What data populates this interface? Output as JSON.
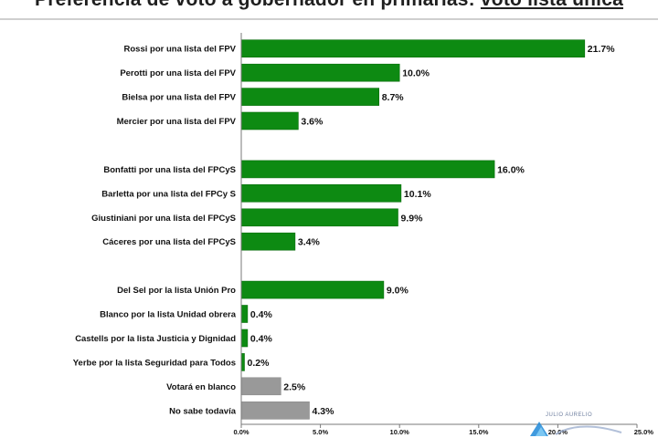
{
  "title_prefix": "Preferencia de voto a gobernador en primarias: ",
  "title_highlight": "voto lista unica",
  "logo_text": "JULIO AURELIO",
  "colors": {
    "candidate": "#0d8a12",
    "other": "#999999",
    "other_border": "#8a8a8a",
    "axis": "#7a7a7a"
  },
  "chart_data": {
    "type": "bar",
    "orientation": "horizontal",
    "categories": [
      "Rossi por una lista del FPV",
      "Perotti por una lista del FPV",
      "Bielsa por una lista del FPV",
      "Mercier por una lista del FPV",
      "",
      "Bonfatti por una lista del FPCyS",
      "Barletta por una lista del FPCy S",
      "Giustiniani por una lista del FPCyS",
      "Cáceres por una lista del FPCyS",
      "",
      "Del Sel por la lista Unión Pro",
      "Blanco por la lista Unidad obrera",
      "Castells por la lista Justicia y Dignidad",
      "Yerbe por la lista Seguridad para Todos",
      "Votará en blanco",
      "No sabe todavía"
    ],
    "values": [
      21.7,
      10.0,
      8.7,
      3.6,
      null,
      16.0,
      10.1,
      9.9,
      3.4,
      null,
      9.0,
      0.4,
      0.4,
      0.2,
      2.5,
      4.3
    ],
    "value_labels": [
      "21.7%",
      "10.0%",
      "8.7%",
      "3.6%",
      "",
      "16.0%",
      "10.1%",
      "9.9%",
      "3.4%",
      "",
      "9.0%",
      "0.4%",
      "0.4%",
      "0.2%",
      "2.5%",
      "4.3%"
    ],
    "bar_color_groups": [
      "candidate",
      "candidate",
      "candidate",
      "candidate",
      "",
      "candidate",
      "candidate",
      "candidate",
      "candidate",
      "",
      "candidate",
      "candidate",
      "candidate",
      "candidate",
      "other",
      "other"
    ],
    "xlim": [
      0,
      25
    ],
    "xticks": [
      0,
      5,
      10,
      15,
      20,
      25
    ],
    "xtick_labels": [
      "0.0%",
      "5.0%",
      "10.0%",
      "15.0%",
      "20.0%",
      "25.0%"
    ],
    "grid": false
  }
}
